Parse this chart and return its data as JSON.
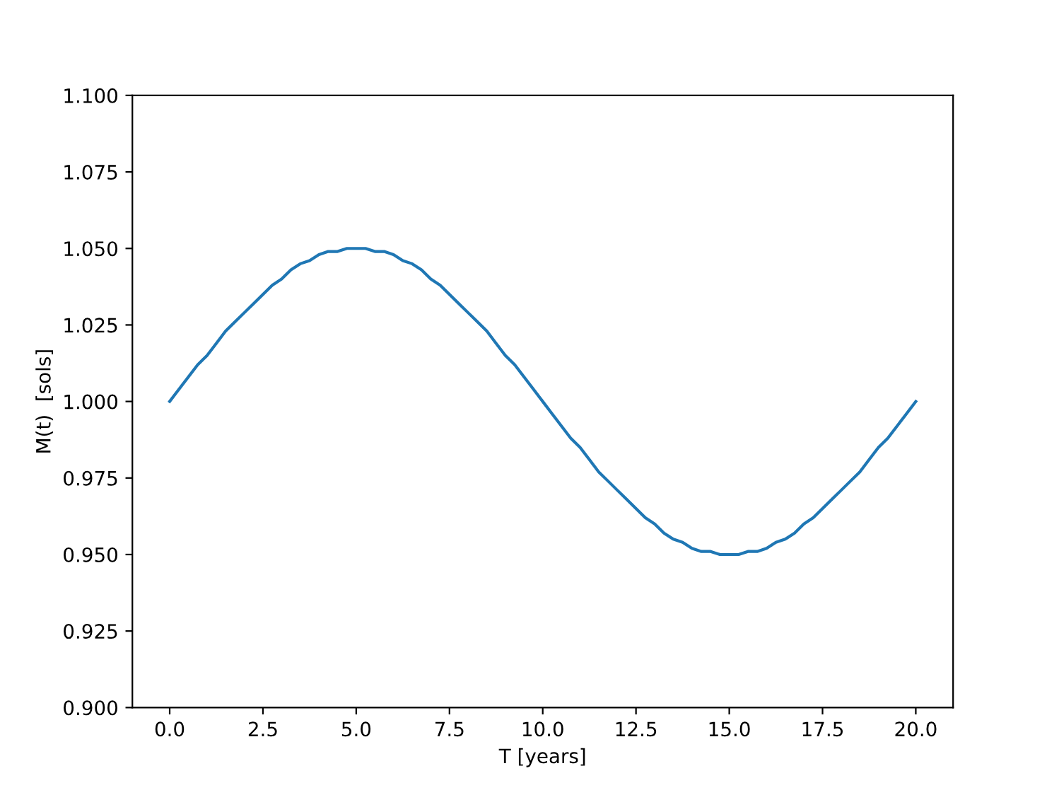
{
  "chart_data": {
    "type": "line",
    "xlabel": "T [years]",
    "ylabel": "M(t)  [sols]",
    "x": [
      0,
      0.25,
      0.5,
      0.75,
      1,
      1.25,
      1.5,
      1.75,
      2,
      2.25,
      2.5,
      2.75,
      3,
      3.25,
      3.5,
      3.75,
      4,
      4.25,
      4.5,
      4.75,
      5,
      5.25,
      5.5,
      5.75,
      6,
      6.25,
      6.5,
      6.75,
      7,
      7.25,
      7.5,
      7.75,
      8,
      8.25,
      8.5,
      8.75,
      9,
      9.25,
      9.5,
      9.75,
      10,
      10.25,
      10.5,
      10.75,
      11,
      11.25,
      11.5,
      11.75,
      12,
      12.25,
      12.5,
      12.75,
      13,
      13.25,
      13.5,
      13.75,
      14,
      14.25,
      14.5,
      14.75,
      15,
      15.25,
      15.5,
      15.75,
      16,
      16.25,
      16.5,
      16.75,
      17,
      17.25,
      17.5,
      17.75,
      18,
      18.25,
      18.5,
      18.75,
      19,
      19.25,
      19.5,
      19.75,
      20
    ],
    "series": [
      {
        "color": "#1f77b4",
        "values": [
          1.0,
          1.004,
          1.008,
          1.012,
          1.015,
          1.019,
          1.023,
          1.026,
          1.029,
          1.032,
          1.035,
          1.038,
          1.04,
          1.043,
          1.045,
          1.046,
          1.048,
          1.049,
          1.049,
          1.05,
          1.05,
          1.05,
          1.049,
          1.049,
          1.048,
          1.046,
          1.045,
          1.043,
          1.04,
          1.038,
          1.035,
          1.032,
          1.029,
          1.026,
          1.023,
          1.019,
          1.015,
          1.012,
          1.008,
          1.004,
          1.0,
          0.996,
          0.992,
          0.988,
          0.985,
          0.981,
          0.977,
          0.974,
          0.971,
          0.968,
          0.965,
          0.962,
          0.96,
          0.957,
          0.955,
          0.954,
          0.952,
          0.951,
          0.951,
          0.95,
          0.95,
          0.95,
          0.951,
          0.951,
          0.952,
          0.954,
          0.955,
          0.957,
          0.96,
          0.962,
          0.965,
          0.968,
          0.971,
          0.974,
          0.977,
          0.981,
          0.985,
          0.988,
          0.992,
          0.996,
          1.0
        ]
      }
    ],
    "xlim": [
      -1,
      21
    ],
    "ylim": [
      0.9,
      1.1
    ],
    "xticks": [
      {
        "value": 0,
        "label": "0.0"
      },
      {
        "value": 2.5,
        "label": "2.5"
      },
      {
        "value": 5,
        "label": "5.0"
      },
      {
        "value": 7.5,
        "label": "7.5"
      },
      {
        "value": 10,
        "label": "10.0"
      },
      {
        "value": 12.5,
        "label": "12.5"
      },
      {
        "value": 15,
        "label": "15.0"
      },
      {
        "value": 17.5,
        "label": "17.5"
      },
      {
        "value": 20,
        "label": "20.0"
      }
    ],
    "yticks": [
      {
        "value": 0.9,
        "label": "0.900"
      },
      {
        "value": 0.925,
        "label": "0.925"
      },
      {
        "value": 0.95,
        "label": "0.950"
      },
      {
        "value": 0.975,
        "label": "0.975"
      },
      {
        "value": 1.0,
        "label": "1.000"
      },
      {
        "value": 1.025,
        "label": "1.025"
      },
      {
        "value": 1.05,
        "label": "1.050"
      },
      {
        "value": 1.075,
        "label": "1.075"
      },
      {
        "value": 1.1,
        "label": "1.100"
      }
    ],
    "grid": false,
    "marker": "none",
    "line_style": "solid"
  }
}
